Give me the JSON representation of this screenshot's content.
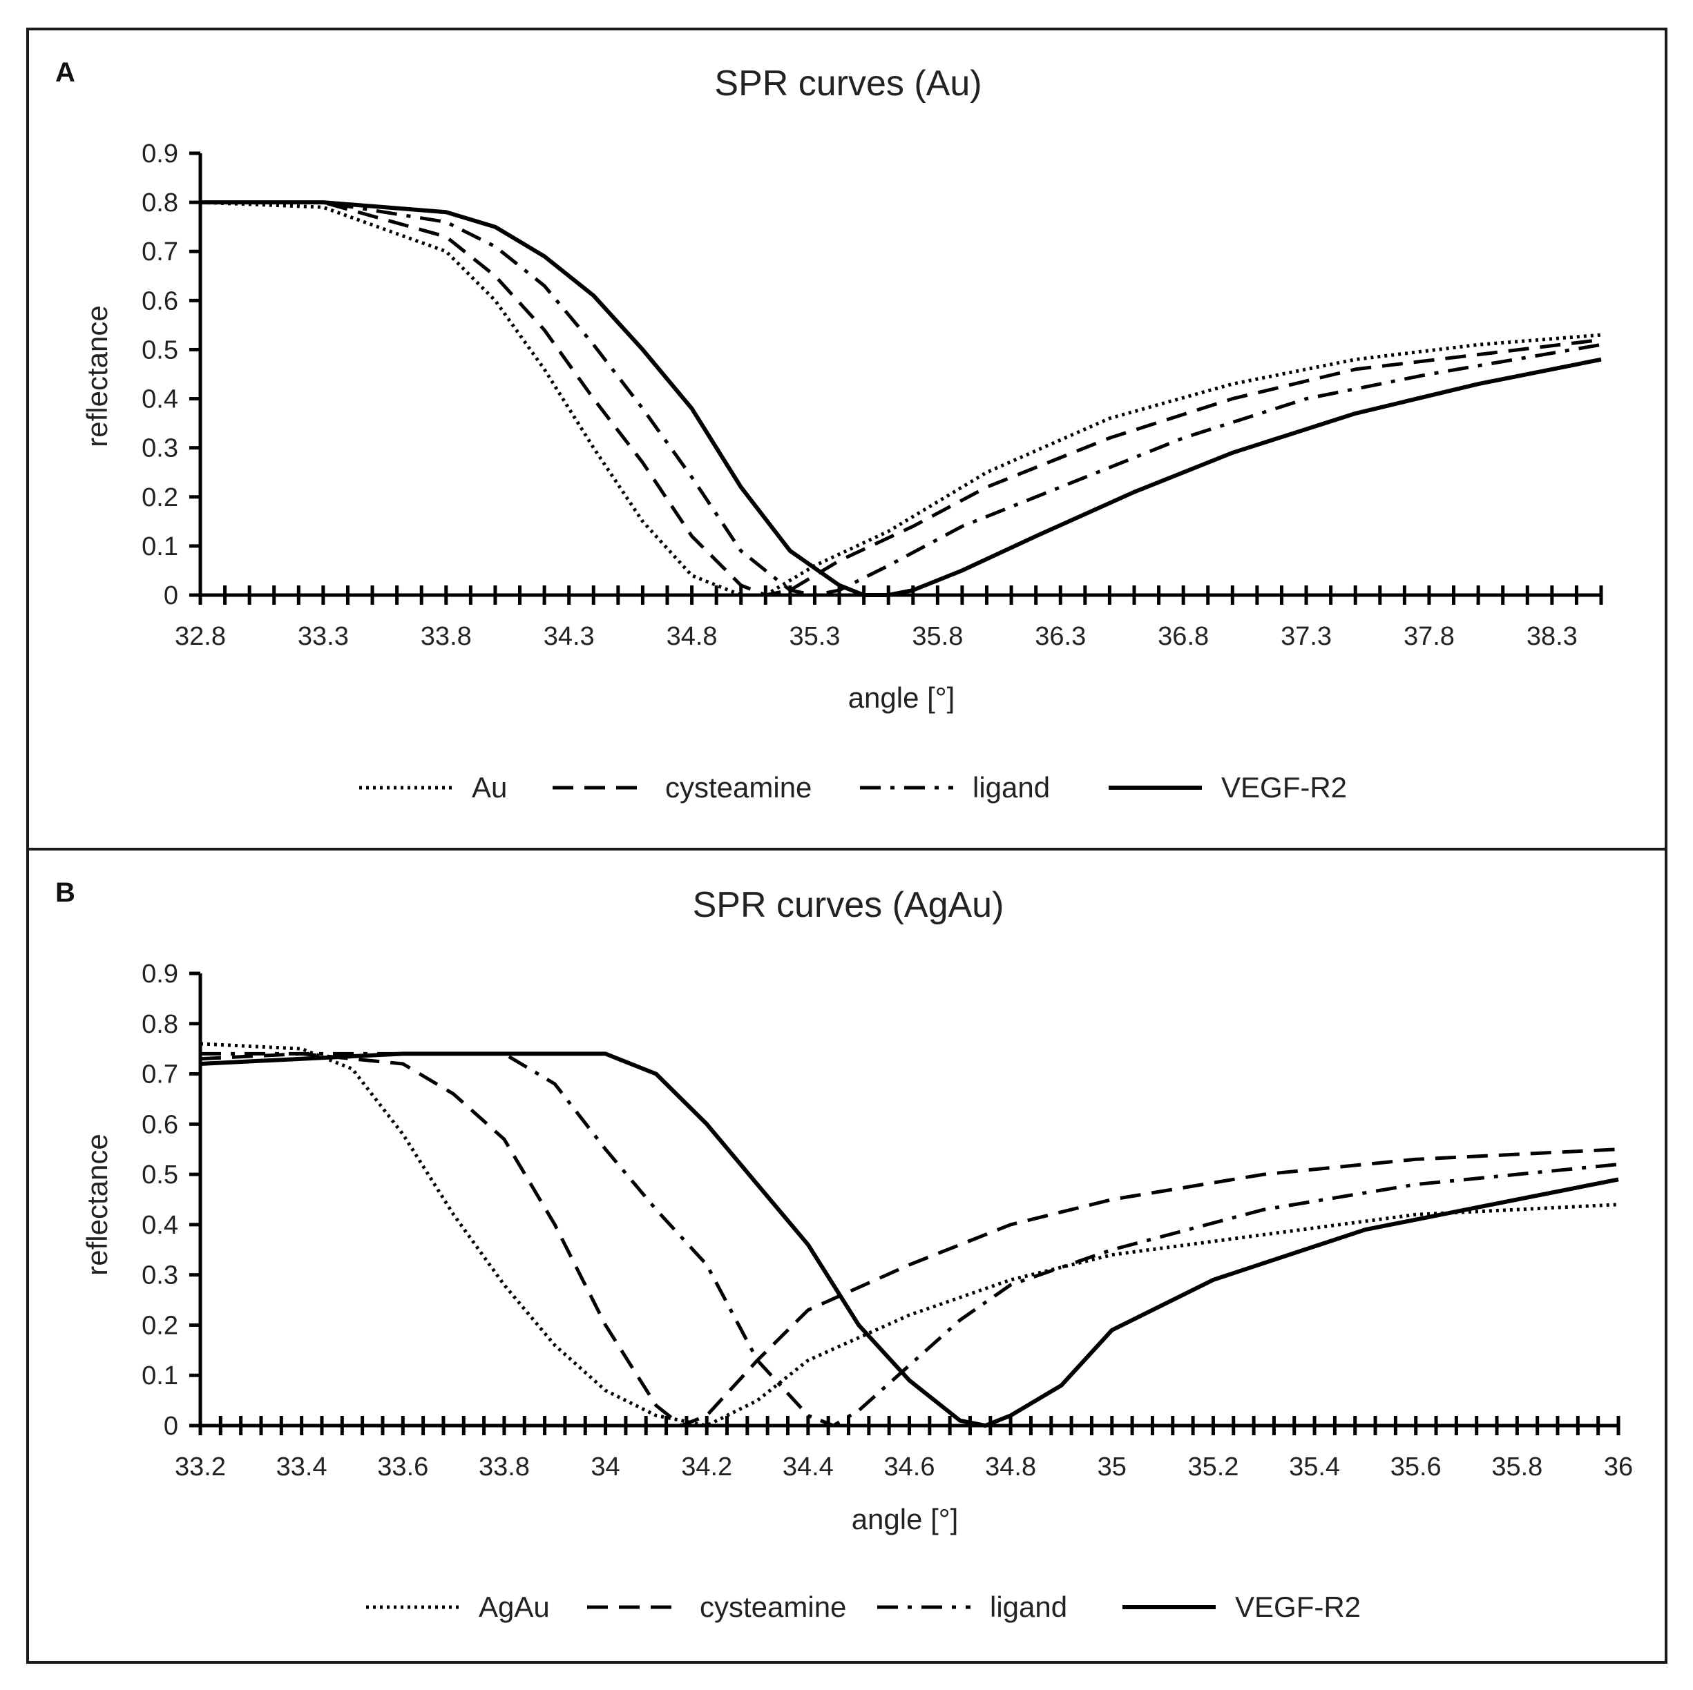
{
  "chart_data": [
    {
      "panel": "A",
      "type": "line",
      "title": "SPR curves (Au)",
      "xlabel": "angle [°]",
      "ylabel": "reflectance",
      "xlim": [
        32.8,
        38.5
      ],
      "ylim": [
        0,
        0.9
      ],
      "xticks": [
        "32.8",
        "33.3",
        "33.8",
        "34.3",
        "34.8",
        "35.3",
        "35.8",
        "36.3",
        "36.8",
        "37.3",
        "37.8",
        "38.3"
      ],
      "yticks": [
        "0",
        "0.1",
        "0.2",
        "0.3",
        "0.4",
        "0.5",
        "0.6",
        "0.7",
        "0.8",
        "0.9"
      ],
      "legend_position": "bottom",
      "series": [
        {
          "name": "Au",
          "style": "dotted",
          "x": [
            32.8,
            33.3,
            33.8,
            34.0,
            34.2,
            34.4,
            34.6,
            34.8,
            35.0,
            35.1,
            35.3,
            35.6,
            36.0,
            36.5,
            37.0,
            37.5,
            38.0,
            38.5
          ],
          "y": [
            0.8,
            0.79,
            0.7,
            0.6,
            0.46,
            0.3,
            0.15,
            0.04,
            0.0,
            0.0,
            0.06,
            0.13,
            0.25,
            0.36,
            0.43,
            0.48,
            0.51,
            0.53
          ]
        },
        {
          "name": "cysteamine",
          "style": "dashed",
          "x": [
            32.8,
            33.3,
            33.8,
            34.0,
            34.2,
            34.4,
            34.6,
            34.8,
            35.0,
            35.1,
            35.2,
            35.4,
            35.7,
            36.0,
            36.5,
            37.0,
            37.5,
            38.0,
            38.5
          ],
          "y": [
            0.8,
            0.8,
            0.73,
            0.65,
            0.54,
            0.4,
            0.27,
            0.12,
            0.02,
            0.0,
            0.01,
            0.07,
            0.14,
            0.22,
            0.32,
            0.4,
            0.46,
            0.49,
            0.52
          ]
        },
        {
          "name": "ligand",
          "style": "dashdot",
          "x": [
            32.8,
            33.3,
            33.8,
            34.0,
            34.2,
            34.4,
            34.6,
            34.8,
            35.0,
            35.2,
            35.3,
            35.4,
            35.6,
            35.9,
            36.3,
            36.8,
            37.3,
            37.8,
            38.5
          ],
          "y": [
            0.8,
            0.8,
            0.76,
            0.71,
            0.63,
            0.51,
            0.38,
            0.24,
            0.09,
            0.01,
            0.0,
            0.01,
            0.06,
            0.14,
            0.22,
            0.32,
            0.4,
            0.45,
            0.51
          ]
        },
        {
          "name": "VEGF-R2",
          "style": "solid",
          "x": [
            32.8,
            33.3,
            33.8,
            34.0,
            34.2,
            34.4,
            34.6,
            34.8,
            35.0,
            35.2,
            35.4,
            35.5,
            35.6,
            35.7,
            35.9,
            36.2,
            36.6,
            37.0,
            37.5,
            38.0,
            38.5
          ],
          "y": [
            0.8,
            0.8,
            0.78,
            0.75,
            0.69,
            0.61,
            0.5,
            0.38,
            0.22,
            0.09,
            0.02,
            0.0,
            0.0,
            0.01,
            0.05,
            0.12,
            0.21,
            0.29,
            0.37,
            0.43,
            0.48
          ]
        }
      ]
    },
    {
      "panel": "B",
      "type": "line",
      "title": "SPR curves (AgAu)",
      "xlabel": "angle [°]",
      "ylabel": "reflectance",
      "xlim": [
        33.2,
        36.0
      ],
      "ylim": [
        0,
        0.9
      ],
      "xticks": [
        "33.2",
        "33.4",
        "33.6",
        "33.8",
        "34",
        "34.2",
        "34.4",
        "34.6",
        "34.8",
        "35",
        "35.2",
        "35.4",
        "35.6",
        "35.8",
        "36"
      ],
      "yticks": [
        "0",
        "0.1",
        "0.2",
        "0.3",
        "0.4",
        "0.5",
        "0.6",
        "0.7",
        "0.8",
        "0.9"
      ],
      "legend_position": "bottom",
      "series": [
        {
          "name": "AgAu",
          "style": "dotted",
          "x": [
            33.2,
            33.4,
            33.5,
            33.6,
            33.7,
            33.8,
            33.9,
            34.0,
            34.1,
            34.2,
            34.3,
            34.4,
            34.6,
            34.8,
            35.0,
            35.3,
            35.6,
            36.0
          ],
          "y": [
            0.76,
            0.75,
            0.71,
            0.58,
            0.42,
            0.28,
            0.16,
            0.07,
            0.02,
            0.0,
            0.05,
            0.13,
            0.22,
            0.29,
            0.34,
            0.38,
            0.42,
            0.44
          ]
        },
        {
          "name": "cysteamine",
          "style": "dashed",
          "x": [
            33.2,
            33.4,
            33.6,
            33.7,
            33.8,
            33.9,
            34.0,
            34.1,
            34.15,
            34.2,
            34.3,
            34.4,
            34.6,
            34.8,
            35.0,
            35.3,
            35.6,
            36.0
          ],
          "y": [
            0.73,
            0.74,
            0.72,
            0.66,
            0.57,
            0.4,
            0.2,
            0.04,
            0.0,
            0.02,
            0.13,
            0.23,
            0.32,
            0.4,
            0.45,
            0.5,
            0.53,
            0.55
          ]
        },
        {
          "name": "ligand",
          "style": "dashdot",
          "x": [
            33.2,
            33.4,
            33.6,
            33.8,
            33.9,
            34.0,
            34.1,
            34.2,
            34.3,
            34.4,
            34.45,
            34.5,
            34.6,
            34.7,
            34.8,
            35.0,
            35.3,
            35.6,
            36.0
          ],
          "y": [
            0.74,
            0.74,
            0.74,
            0.74,
            0.68,
            0.55,
            0.43,
            0.32,
            0.13,
            0.02,
            0.0,
            0.03,
            0.12,
            0.21,
            0.28,
            0.35,
            0.43,
            0.48,
            0.52
          ]
        },
        {
          "name": "VEGF-R2",
          "style": "solid",
          "x": [
            33.2,
            33.4,
            33.6,
            33.8,
            34.0,
            34.1,
            34.2,
            34.3,
            34.4,
            34.5,
            34.6,
            34.7,
            34.75,
            34.8,
            34.9,
            35.0,
            35.2,
            35.5,
            35.8,
            36.0
          ],
          "y": [
            0.72,
            0.73,
            0.74,
            0.74,
            0.74,
            0.7,
            0.6,
            0.48,
            0.36,
            0.2,
            0.09,
            0.01,
            0.0,
            0.02,
            0.08,
            0.19,
            0.29,
            0.39,
            0.45,
            0.49
          ]
        }
      ]
    }
  ]
}
